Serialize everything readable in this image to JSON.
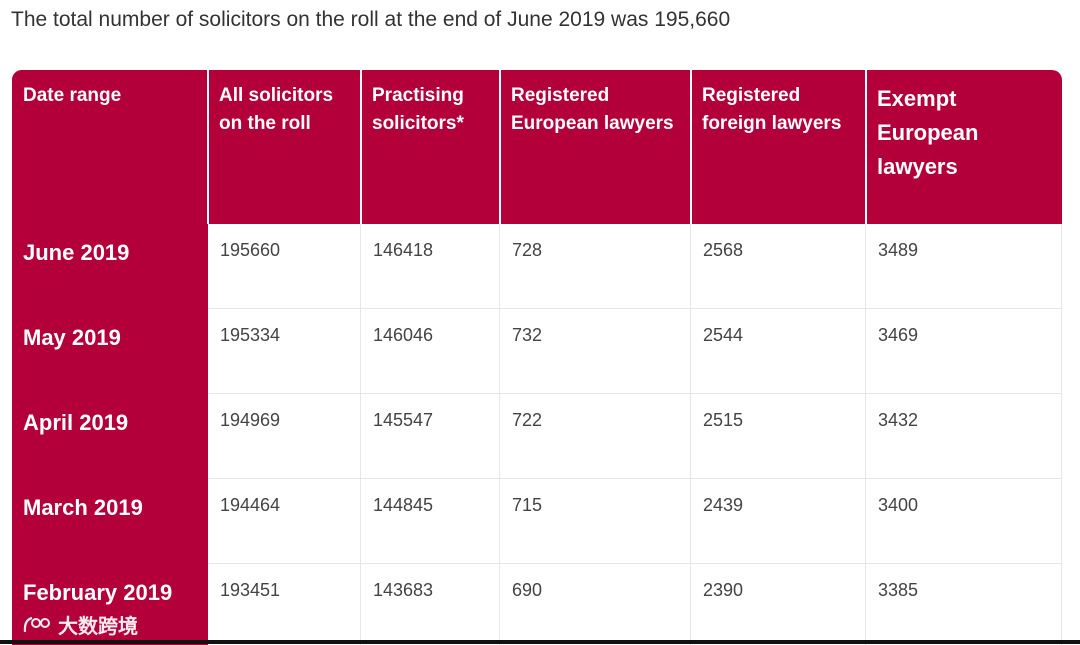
{
  "intro_text": "The total number of solicitors on the roll at the end of June 2019 was 195,660",
  "table": {
    "headers": [
      "Date range",
      "All solicitors on the roll",
      "Practising solicitors*",
      "Registered European lawyers",
      "Registered foreign lawyers",
      "Exempt European lawyers"
    ],
    "rows": [
      {
        "label": "June 2019",
        "values": [
          "195660",
          "146418",
          "728",
          "2568",
          "3489"
        ]
      },
      {
        "label": "May 2019",
        "values": [
          "195334",
          "146046",
          "732",
          "2544",
          "3469"
        ]
      },
      {
        "label": "April 2019",
        "values": [
          "194969",
          "145547",
          "722",
          "2515",
          "3432"
        ]
      },
      {
        "label": "March 2019",
        "values": [
          "194464",
          "144845",
          "715",
          "2439",
          "3400"
        ]
      },
      {
        "label": "February 2019",
        "values": [
          "193451",
          "143683",
          "690",
          "2390",
          "3385"
        ]
      }
    ]
  },
  "colors": {
    "header_bg": "#b4003a",
    "cell_border": "#e6e6e6",
    "text": "#444444"
  },
  "watermark": {
    "icon": "watermark-logo-icon",
    "text": "大数跨境"
  }
}
